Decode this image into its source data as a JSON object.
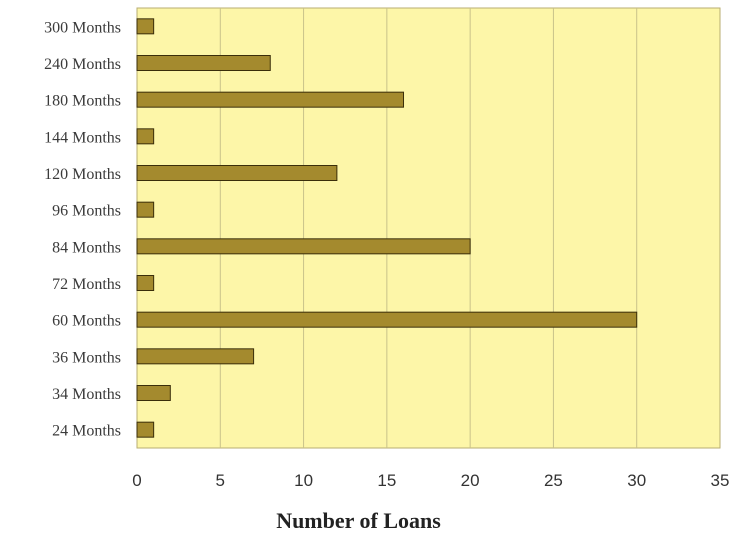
{
  "chart_data": {
    "type": "bar",
    "orientation": "horizontal",
    "categories": [
      "24 Months",
      "34 Months",
      "36 Months",
      "60 Months",
      "72 Months",
      "84 Months",
      "96 Months",
      "120 Months",
      "144 Months",
      "180 Months",
      "240 Months",
      "300 Months"
    ],
    "values": [
      1,
      2,
      7,
      30,
      1,
      20,
      1,
      12,
      1,
      16,
      8,
      1
    ],
    "title": "",
    "xlabel": "Number of Loans",
    "ylabel": "",
    "xlim": [
      0,
      35
    ],
    "xticks": [
      "0",
      "5",
      "10",
      "15",
      "20",
      "25",
      "30",
      "35"
    ],
    "grid": "vertical",
    "legend": "none",
    "colors": {
      "plot_background": "#fdf6a8",
      "bar_fill": "#a48a2e",
      "bar_stroke": "#3a2e0a",
      "grid": "#c9c28a",
      "frame": "#b8ae72"
    }
  }
}
